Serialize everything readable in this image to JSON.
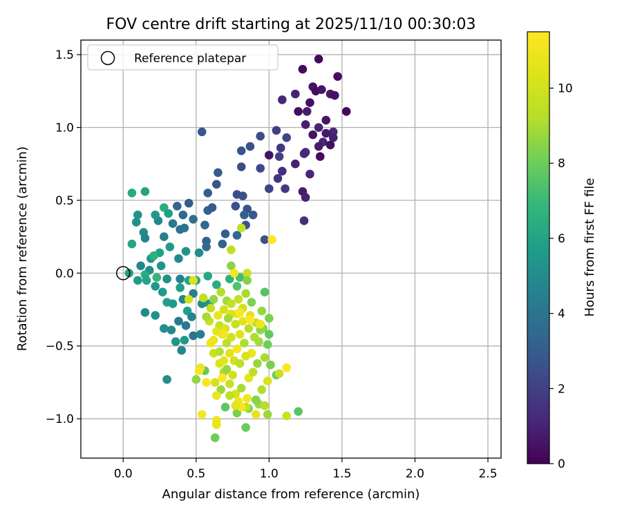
{
  "chart_data": {
    "type": "scatter",
    "title": "FOV centre drift starting at 2025/11/10 00:30:03",
    "xlabel": "Angular distance from reference (arcmin)",
    "ylabel": "Rotation from reference (arcmin)",
    "xlim": [
      -0.29,
      2.59
    ],
    "ylim": [
      -1.27,
      1.6
    ],
    "xticks": [
      0.0,
      0.5,
      1.0,
      1.5,
      2.0,
      2.5
    ],
    "xtick_labels": [
      "0.0",
      "0.5",
      "1.0",
      "1.5",
      "2.0",
      "2.5"
    ],
    "yticks": [
      -1.0,
      -0.5,
      0.0,
      0.5,
      1.0,
      1.5
    ],
    "ytick_labels": [
      "−1.0",
      "−0.5",
      "0.0",
      "0.5",
      "1.0",
      "1.5"
    ],
    "grid": true,
    "legend": {
      "position": "top-left",
      "entries": [
        "Reference platepar"
      ]
    },
    "reference_point": {
      "x": 0.0,
      "y": 0.0,
      "label": "Reference platepar"
    },
    "colorbar": {
      "label": "Hours from first FF file",
      "range": [
        0,
        11.5
      ],
      "ticks": [
        0,
        2,
        4,
        6,
        8,
        10
      ],
      "tick_labels": [
        "0",
        "2",
        "4",
        "6",
        "8",
        "10"
      ],
      "colormap": "viridis"
    },
    "points": [
      [
        1.34,
        1.47,
        0.2
      ],
      [
        1.23,
        1.4,
        0.3
      ],
      [
        1.47,
        1.35,
        0.4
      ],
      [
        1.3,
        1.28,
        0.5
      ],
      [
        1.32,
        1.25,
        0.3
      ],
      [
        1.36,
        1.26,
        0.6
      ],
      [
        1.18,
        1.23,
        1.0
      ],
      [
        1.09,
        1.19,
        1.1
      ],
      [
        1.28,
        1.17,
        0.4
      ],
      [
        1.42,
        1.23,
        0.7
      ],
      [
        1.45,
        1.22,
        0.5
      ],
      [
        1.2,
        1.11,
        0.3
      ],
      [
        1.26,
        1.11,
        0.8
      ],
      [
        1.53,
        1.11,
        0.2
      ],
      [
        1.39,
        1.05,
        0.6
      ],
      [
        1.25,
        1.02,
        0.9
      ],
      [
        1.34,
        1.0,
        1.0
      ],
      [
        1.44,
        0.97,
        1.2
      ],
      [
        1.39,
        0.96,
        0.7
      ],
      [
        1.3,
        0.95,
        0.5
      ],
      [
        1.44,
        0.93,
        0.9
      ],
      [
        1.37,
        0.9,
        1.1
      ],
      [
        1.42,
        0.88,
        0.4
      ],
      [
        1.34,
        0.87,
        0.8
      ],
      [
        1.35,
        0.8,
        0.3
      ],
      [
        1.25,
        0.83,
        1.5
      ],
      [
        1.05,
        0.98,
        1.9
      ],
      [
        1.12,
        0.93,
        2.2
      ],
      [
        1.08,
        0.86,
        1.7
      ],
      [
        1.0,
        0.81,
        0.5
      ],
      [
        1.07,
        0.8,
        2.0
      ],
      [
        1.24,
        0.82,
        1.2
      ],
      [
        1.18,
        0.75,
        0.9
      ],
      [
        1.09,
        0.7,
        1.4
      ],
      [
        1.28,
        0.68,
        1.1
      ],
      [
        1.06,
        0.65,
        1.6
      ],
      [
        1.0,
        0.58,
        2.1
      ],
      [
        1.11,
        0.58,
        1.8
      ],
      [
        1.23,
        0.56,
        0.8
      ],
      [
        1.25,
        0.52,
        1.0
      ],
      [
        1.24,
        0.36,
        1.3
      ],
      [
        0.94,
        0.94,
        2.5
      ],
      [
        0.81,
        0.84,
        2.8
      ],
      [
        0.87,
        0.87,
        2.6
      ],
      [
        0.94,
        0.72,
        2.3
      ],
      [
        0.81,
        0.73,
        2.4
      ],
      [
        0.54,
        0.97,
        2.9
      ],
      [
        0.65,
        0.69,
        3.0
      ],
      [
        0.64,
        0.61,
        2.7
      ],
      [
        0.78,
        0.54,
        2.5
      ],
      [
        0.82,
        0.53,
        2.6
      ],
      [
        0.58,
        0.55,
        3.1
      ],
      [
        0.45,
        0.48,
        3.0
      ],
      [
        0.37,
        0.46,
        3.3
      ],
      [
        0.41,
        0.4,
        3.5
      ],
      [
        0.58,
        0.43,
        3.2
      ],
      [
        0.61,
        0.45,
        2.9
      ],
      [
        0.77,
        0.46,
        2.6
      ],
      [
        0.85,
        0.44,
        2.8
      ],
      [
        0.83,
        0.4,
        3.1
      ],
      [
        0.89,
        0.4,
        2.9
      ],
      [
        0.56,
        0.33,
        3.4
      ],
      [
        0.84,
        0.33,
        2.7
      ],
      [
        0.7,
        0.27,
        3.0
      ],
      [
        0.78,
        0.26,
        3.5
      ],
      [
        0.97,
        0.23,
        2.7
      ],
      [
        0.57,
        0.22,
        3.2
      ],
      [
        0.57,
        0.18,
        3.6
      ],
      [
        0.68,
        0.2,
        3.3
      ],
      [
        0.42,
        0.31,
        4.0
      ],
      [
        0.48,
        0.37,
        3.7
      ],
      [
        0.34,
        0.34,
        4.3
      ],
      [
        0.28,
        0.25,
        4.5
      ],
      [
        0.39,
        0.3,
        3.8
      ],
      [
        0.24,
        0.36,
        4.8
      ],
      [
        0.14,
        0.28,
        5.0
      ],
      [
        0.09,
        0.35,
        5.2
      ],
      [
        0.15,
        0.24,
        4.6
      ],
      [
        0.06,
        0.55,
        6.2
      ],
      [
        0.15,
        0.56,
        6.0
      ],
      [
        0.1,
        0.4,
        5.3
      ],
      [
        0.22,
        0.4,
        5.5
      ],
      [
        0.28,
        0.45,
        6.5
      ],
      [
        0.31,
        0.41,
        5.8
      ],
      [
        0.25,
        0.14,
        5.9
      ],
      [
        0.32,
        0.18,
        5.6
      ],
      [
        0.43,
        0.15,
        5.3
      ],
      [
        0.52,
        0.14,
        5.0
      ],
      [
        0.38,
        0.1,
        4.9
      ],
      [
        0.26,
        0.05,
        5.4
      ],
      [
        0.18,
        0.02,
        5.1
      ],
      [
        0.12,
        0.05,
        4.7
      ],
      [
        0.06,
        0.2,
        6.1
      ],
      [
        0.04,
        0.0,
        5.9
      ],
      [
        0.1,
        -0.05,
        5.7
      ],
      [
        0.15,
        -0.01,
        6.3
      ],
      [
        0.19,
        0.1,
        5.6
      ],
      [
        0.21,
        0.12,
        6.6
      ],
      [
        0.23,
        -0.03,
        6.8
      ],
      [
        0.16,
        -0.05,
        6.0
      ],
      [
        0.22,
        -0.09,
        5.5
      ],
      [
        0.3,
        -0.04,
        5.2
      ],
      [
        0.39,
        -0.04,
        4.7
      ],
      [
        0.45,
        -0.05,
        6.0
      ],
      [
        0.5,
        -0.05,
        6.2
      ],
      [
        0.3,
        -0.2,
        5.9
      ],
      [
        0.34,
        -0.21,
        5.6
      ],
      [
        0.41,
        -0.18,
        4.8
      ],
      [
        0.48,
        -0.14,
        4.4
      ],
      [
        0.54,
        -0.21,
        5.0
      ],
      [
        0.59,
        -0.21,
        5.4
      ],
      [
        0.44,
        -0.26,
        5.8
      ],
      [
        0.47,
        -0.3,
        4.6
      ],
      [
        0.38,
        -0.33,
        4.3
      ],
      [
        0.28,
        -0.38,
        5.1
      ],
      [
        0.33,
        -0.39,
        4.9
      ],
      [
        0.36,
        -0.47,
        5.3
      ],
      [
        0.42,
        -0.46,
        5.5
      ],
      [
        0.43,
        -0.36,
        4.2
      ],
      [
        0.48,
        -0.43,
        4.0
      ],
      [
        0.53,
        -0.42,
        4.5
      ],
      [
        0.4,
        -0.53,
        4.7
      ],
      [
        0.3,
        -0.73,
        5.0
      ],
      [
        0.15,
        -0.27,
        4.9
      ],
      [
        0.22,
        -0.29,
        5.2
      ],
      [
        0.27,
        -0.13,
        5.6
      ],
      [
        0.39,
        -0.1,
        5.8
      ],
      [
        0.58,
        -0.02,
        6.1
      ],
      [
        0.64,
        -0.08,
        6.4
      ],
      [
        0.73,
        -0.04,
        6.6
      ],
      [
        0.8,
        -0.03,
        7.2
      ],
      [
        0.78,
        -0.09,
        7.5
      ],
      [
        0.74,
        0.05,
        8.5
      ],
      [
        0.74,
        0.16,
        9.5
      ],
      [
        0.81,
        0.31,
        9.6
      ],
      [
        0.85,
        0.0,
        9.8
      ],
      [
        0.56,
        -0.67,
        7.8
      ],
      [
        0.5,
        -0.73,
        8.6
      ],
      [
        0.63,
        -1.13,
        8.0
      ],
      [
        0.7,
        -0.92,
        7.7
      ],
      [
        0.78,
        -0.96,
        8.2
      ],
      [
        0.86,
        -0.93,
        8.5
      ],
      [
        0.84,
        -1.06,
        7.9
      ],
      [
        0.93,
        -0.9,
        8.8
      ],
      [
        1.2,
        -0.95,
        7.6
      ],
      [
        1.12,
        -0.98,
        9.9
      ],
      [
        0.54,
        -0.97,
        11.2
      ],
      [
        0.64,
        -1.01,
        11.0
      ],
      [
        0.64,
        -1.04,
        10.8
      ],
      [
        0.66,
        -0.36,
        9.7
      ],
      [
        0.68,
        -0.42,
        10.2
      ],
      [
        0.71,
        -0.48,
        9.4
      ],
      [
        0.73,
        -0.55,
        10.5
      ],
      [
        0.76,
        -0.6,
        10.0
      ],
      [
        0.78,
        -0.28,
        11.0
      ],
      [
        0.82,
        -0.33,
        10.6
      ],
      [
        0.86,
        -0.38,
        9.3
      ],
      [
        0.9,
        -0.44,
        9.1
      ],
      [
        0.93,
        -0.47,
        8.9
      ],
      [
        0.96,
        -0.38,
        8.5
      ],
      [
        0.99,
        -0.49,
        8.0
      ],
      [
        1.0,
        -0.42,
        7.8
      ],
      [
        1.0,
        -0.31,
        8.2
      ],
      [
        0.95,
        -0.26,
        8.7
      ],
      [
        0.97,
        -0.13,
        7.5
      ],
      [
        0.88,
        -0.2,
        8.3
      ],
      [
        0.84,
        -0.14,
        9.0
      ],
      [
        0.85,
        -0.05,
        8.4
      ],
      [
        0.79,
        -0.18,
        9.6
      ],
      [
        0.74,
        -0.28,
        10.4
      ],
      [
        0.71,
        -0.19,
        8.9
      ],
      [
        0.67,
        -0.13,
        9.3
      ],
      [
        0.62,
        -0.18,
        8.6
      ],
      [
        0.55,
        -0.17,
        9.5
      ],
      [
        0.59,
        -0.33,
        9.8
      ],
      [
        0.64,
        -0.4,
        10.7
      ],
      [
        0.6,
        -0.48,
        10.9
      ],
      [
        0.62,
        -0.55,
        9.9
      ],
      [
        0.66,
        -0.62,
        10.3
      ],
      [
        0.69,
        -0.68,
        9.2
      ],
      [
        0.63,
        -0.75,
        10.1
      ],
      [
        0.67,
        -0.8,
        8.8
      ],
      [
        0.73,
        -0.76,
        9.7
      ],
      [
        0.77,
        -0.83,
        10.2
      ],
      [
        0.81,
        -0.79,
        9.0
      ],
      [
        0.86,
        -0.72,
        10.6
      ],
      [
        0.89,
        -0.68,
        9.4
      ],
      [
        0.92,
        -0.62,
        8.7
      ],
      [
        0.88,
        -0.55,
        10.8
      ],
      [
        0.83,
        -0.48,
        9.1
      ],
      [
        0.8,
        -0.42,
        10.4
      ],
      [
        0.77,
        -0.35,
        9.8
      ],
      [
        0.72,
        -0.31,
        8.9
      ],
      [
        0.69,
        -0.25,
        10.1
      ],
      [
        0.74,
        -0.21,
        9.6
      ],
      [
        0.82,
        -0.24,
        9.9
      ],
      [
        0.87,
        -0.29,
        10.5
      ],
      [
        0.91,
        -0.34,
        9.5
      ],
      [
        0.94,
        -0.39,
        8.6
      ],
      [
        0.97,
        -0.58,
        9.0
      ],
      [
        1.01,
        -0.63,
        8.2
      ],
      [
        1.05,
        -0.7,
        8.0
      ],
      [
        1.12,
        -0.65,
        11.4
      ],
      [
        1.07,
        -0.69,
        9.8
      ],
      [
        0.99,
        -0.74,
        10.3
      ],
      [
        0.95,
        -0.8,
        9.2
      ],
      [
        0.91,
        -0.87,
        8.4
      ],
      [
        0.84,
        -0.92,
        9.7
      ],
      [
        0.79,
        -0.88,
        10.9
      ],
      [
        0.73,
        -0.84,
        9.5
      ],
      [
        0.69,
        -0.6,
        10.6
      ],
      [
        0.66,
        -0.54,
        9.3
      ],
      [
        0.71,
        -0.66,
        8.7
      ],
      [
        0.75,
        -0.7,
        10.0
      ],
      [
        0.8,
        -0.62,
        9.4
      ],
      [
        0.84,
        -0.57,
        10.2
      ],
      [
        0.78,
        -0.52,
        11.2
      ],
      [
        0.74,
        -0.44,
        9.9
      ],
      [
        0.7,
        -0.38,
        10.4
      ],
      [
        0.65,
        -0.29,
        10.8
      ],
      [
        0.6,
        -0.24,
        9.6
      ],
      [
        0.57,
        -0.3,
        9.0
      ],
      [
        0.53,
        -0.65,
        10.9
      ],
      [
        0.52,
        -0.67,
        11.3
      ],
      [
        0.97,
        -0.91,
        9.3
      ],
      [
        0.99,
        -0.97,
        8.8
      ],
      [
        0.91,
        -0.97,
        10.7
      ],
      [
        0.81,
        -0.92,
        11.3
      ],
      [
        0.68,
        -0.72,
        11.5
      ],
      [
        0.69,
        -0.42,
        11.2
      ],
      [
        0.87,
        -0.32,
        11.5
      ],
      [
        0.8,
        -0.27,
        11.4
      ],
      [
        0.76,
        0.0,
        11.1
      ],
      [
        1.02,
        0.23,
        11.4
      ],
      [
        0.94,
        -0.35,
        11.0
      ],
      [
        0.57,
        -0.75,
        11.3
      ],
      [
        0.64,
        -0.84,
        10.9
      ],
      [
        0.77,
        -0.91,
        10.6
      ],
      [
        0.85,
        -0.86,
        11.1
      ],
      [
        0.62,
        -0.46,
        11.0
      ],
      [
        0.48,
        -0.05,
        10.3
      ],
      [
        0.45,
        -0.18,
        10.0
      ]
    ]
  }
}
